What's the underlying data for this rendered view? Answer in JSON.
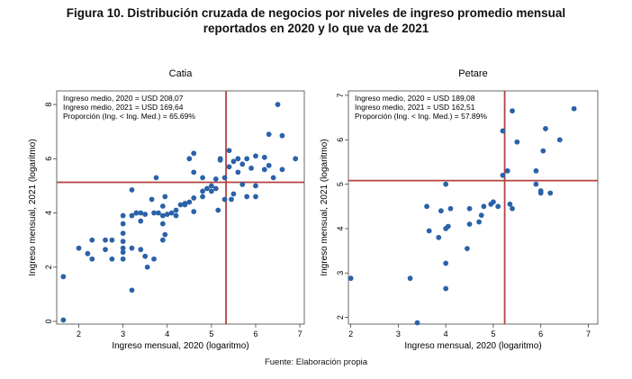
{
  "figure": {
    "title_line1": "Figura 10. Distribución cruzada de negocios por niveles de ingreso promedio mensual",
    "title_line2": "reportados en 2020 y lo que va de 2021",
    "source": "Fuente: Elaboración propia"
  },
  "chart_data": [
    {
      "type": "scatter",
      "title": "Catia",
      "xlabel": "Ingreso mensual, 2020 (logaritmo)",
      "ylabel": "Ingreso mensual, 2021 (logaritmo)",
      "xlim": [
        1.5,
        7.1
      ],
      "ylim": [
        -0.1,
        8.5
      ],
      "xticks": [
        2,
        3,
        4,
        5,
        6,
        7
      ],
      "yticks": [
        0,
        2,
        4,
        6,
        8
      ],
      "grid": false,
      "annotations": [
        "Ingreso medio, 2020 = USD 208,07",
        "Ingreso medio, 2021 = USD 169,64",
        "Proporción (Ing. < Ing. Med.) = 65.69%"
      ],
      "reference_lines": {
        "x": 5.33,
        "y": 5.13
      },
      "colors": {
        "points": "#2b62a8",
        "lines": "#b54242"
      },
      "points": [
        [
          1.65,
          1.65
        ],
        [
          1.65,
          0.05
        ],
        [
          2.0,
          2.7
        ],
        [
          2.2,
          2.5
        ],
        [
          2.3,
          3.0
        ],
        [
          2.3,
          2.3
        ],
        [
          2.6,
          3.0
        ],
        [
          2.6,
          2.65
        ],
        [
          2.75,
          2.3
        ],
        [
          2.75,
          3.0
        ],
        [
          3.0,
          3.9
        ],
        [
          3.0,
          3.6
        ],
        [
          3.0,
          3.25
        ],
        [
          3.0,
          2.95
        ],
        [
          3.0,
          2.7
        ],
        [
          3.0,
          2.55
        ],
        [
          3.0,
          2.3
        ],
        [
          3.2,
          4.85
        ],
        [
          3.2,
          3.9
        ],
        [
          3.2,
          2.7
        ],
        [
          3.2,
          1.15
        ],
        [
          3.3,
          4.0
        ],
        [
          3.3,
          4.0
        ],
        [
          3.4,
          4.0
        ],
        [
          3.4,
          3.7
        ],
        [
          3.4,
          2.65
        ],
        [
          3.5,
          2.4
        ],
        [
          3.5,
          3.95
        ],
        [
          3.55,
          2.0
        ],
        [
          3.65,
          4.5
        ],
        [
          3.7,
          4.0
        ],
        [
          3.7,
          2.3
        ],
        [
          3.75,
          5.3
        ],
        [
          3.8,
          4.0
        ],
        [
          3.9,
          4.25
        ],
        [
          3.9,
          3.9
        ],
        [
          3.9,
          3.6
        ],
        [
          3.9,
          3.0
        ],
        [
          3.95,
          4.6
        ],
        [
          3.95,
          3.2
        ],
        [
          4.0,
          3.95
        ],
        [
          4.1,
          4.0
        ],
        [
          4.2,
          4.1
        ],
        [
          4.2,
          3.9
        ],
        [
          4.3,
          4.3
        ],
        [
          4.4,
          4.3
        ],
        [
          4.4,
          4.35
        ],
        [
          4.5,
          6.0
        ],
        [
          4.5,
          4.4
        ],
        [
          4.6,
          6.2
        ],
        [
          4.6,
          5.5
        ],
        [
          4.6,
          4.55
        ],
        [
          4.6,
          4.05
        ],
        [
          4.8,
          5.3
        ],
        [
          4.8,
          4.8
        ],
        [
          4.8,
          4.6
        ],
        [
          4.9,
          4.9
        ],
        [
          5.0,
          5.0
        ],
        [
          5.0,
          4.8
        ],
        [
          5.1,
          5.25
        ],
        [
          5.1,
          4.9
        ],
        [
          5.15,
          4.1
        ],
        [
          5.2,
          6.0
        ],
        [
          5.2,
          5.95
        ],
        [
          5.3,
          5.3
        ],
        [
          5.3,
          4.5
        ],
        [
          5.4,
          6.3
        ],
        [
          5.4,
          5.7
        ],
        [
          5.45,
          4.5
        ],
        [
          5.5,
          5.9
        ],
        [
          5.5,
          4.7
        ],
        [
          5.6,
          6.0
        ],
        [
          5.6,
          5.5
        ],
        [
          5.7,
          5.8
        ],
        [
          5.7,
          5.05
        ],
        [
          5.8,
          6.0
        ],
        [
          5.8,
          4.6
        ],
        [
          5.9,
          5.65
        ],
        [
          6.0,
          6.1
        ],
        [
          6.0,
          5.0
        ],
        [
          6.0,
          4.6
        ],
        [
          6.2,
          6.05
        ],
        [
          6.2,
          5.6
        ],
        [
          6.3,
          6.9
        ],
        [
          6.3,
          5.75
        ],
        [
          6.4,
          5.3
        ],
        [
          6.5,
          8.0
        ],
        [
          6.6,
          6.85
        ],
        [
          6.6,
          5.6
        ],
        [
          6.9,
          6.0
        ]
      ]
    },
    {
      "type": "scatter",
      "title": "Petare",
      "xlabel": "Ingreso mensual, 2020 (logaritmo)",
      "ylabel": "Ingreso mensual, 2021 (logaritmo)",
      "xlim": [
        1.95,
        7.2
      ],
      "ylim": [
        1.85,
        7.1
      ],
      "xticks": [
        2,
        3,
        4,
        5,
        6,
        7
      ],
      "yticks": [
        2,
        3,
        4,
        5,
        6,
        7
      ],
      "grid": false,
      "annotations": [
        "Ingreso medio, 2020 = USD 189,08",
        "Ingreso medio, 2021 = USD 162,51",
        "Proporción (Ing. < Ing. Med.) = 57.89%"
      ],
      "reference_lines": {
        "x": 5.24,
        "y": 5.08
      },
      "colors": {
        "points": "#2b62a8",
        "lines": "#b54242"
      },
      "points": [
        [
          2.0,
          2.88
        ],
        [
          3.25,
          2.88
        ],
        [
          3.4,
          1.88
        ],
        [
          3.6,
          4.5
        ],
        [
          3.65,
          3.95
        ],
        [
          3.85,
          3.8
        ],
        [
          3.9,
          4.4
        ],
        [
          4.0,
          5.0
        ],
        [
          4.0,
          4.0
        ],
        [
          4.0,
          3.22
        ],
        [
          4.0,
          2.65
        ],
        [
          4.05,
          4.05
        ],
        [
          4.1,
          4.45
        ],
        [
          4.45,
          3.55
        ],
        [
          4.5,
          4.45
        ],
        [
          4.5,
          4.1
        ],
        [
          4.7,
          4.15
        ],
        [
          4.75,
          4.3
        ],
        [
          4.8,
          4.5
        ],
        [
          4.95,
          4.55
        ],
        [
          5.0,
          4.6
        ],
        [
          5.1,
          4.5
        ],
        [
          5.2,
          6.2
        ],
        [
          5.2,
          5.2
        ],
        [
          5.3,
          5.3
        ],
        [
          5.35,
          4.55
        ],
        [
          5.4,
          6.65
        ],
        [
          5.4,
          4.45
        ],
        [
          5.5,
          5.95
        ],
        [
          5.9,
          5.3
        ],
        [
          5.9,
          5.0
        ],
        [
          6.0,
          4.85
        ],
        [
          6.0,
          4.8
        ],
        [
          6.05,
          5.75
        ],
        [
          6.1,
          6.25
        ],
        [
          6.2,
          4.8
        ],
        [
          6.4,
          6.0
        ],
        [
          6.7,
          6.7
        ]
      ]
    }
  ]
}
